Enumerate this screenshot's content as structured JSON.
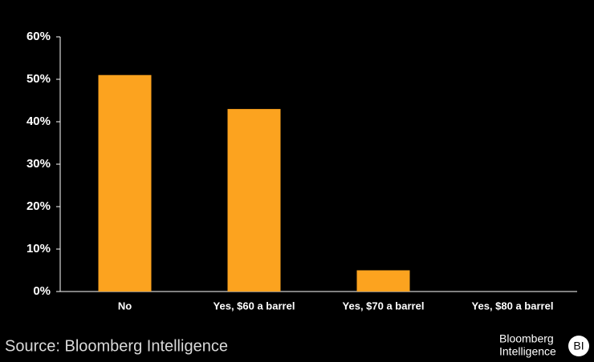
{
  "chart_data": {
    "type": "bar",
    "categories": [
      "No",
      "Yes, $60 a barrel",
      "Yes, $70 a barrel",
      "Yes, $80 a barrel"
    ],
    "values": [
      51,
      43,
      5,
      0
    ],
    "color": "#fca31f",
    "ylim": [
      0,
      60
    ],
    "yticks": [
      {
        "value": 0,
        "label": "0%"
      },
      {
        "value": 10,
        "label": "10%"
      },
      {
        "value": 20,
        "label": "20%"
      },
      {
        "value": 30,
        "label": "30%"
      },
      {
        "value": 40,
        "label": "40%"
      },
      {
        "value": 50,
        "label": "50%"
      },
      {
        "value": 60,
        "label": "60%"
      }
    ],
    "grid": false,
    "source": "Source: Bloomberg Intelligence"
  },
  "branding": {
    "line1": "Bloomberg",
    "line2": "Intelligence",
    "badge": "BI"
  }
}
